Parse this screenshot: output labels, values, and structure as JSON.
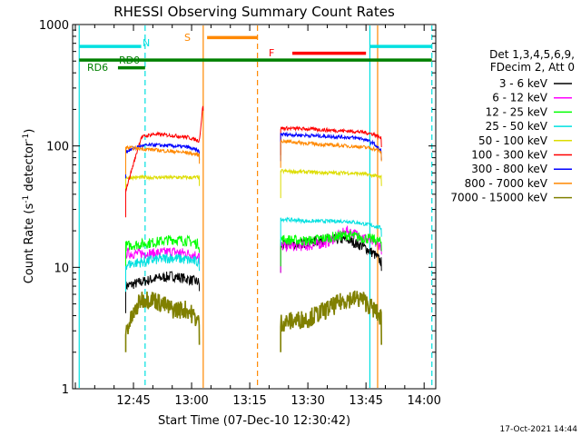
{
  "chart_data": {
    "type": "line",
    "title": "RHESSI Observing Summary Count Rates",
    "xlabel": "Start Time (07-Dec-10 12:30:42)",
    "ylabel_parts": [
      "Count Rate (s",
      "-1",
      " detector",
      "-1",
      ")"
    ],
    "y_scale": "log",
    "ylim": [
      1,
      1000
    ],
    "xlim_minutes_of_hour_13": [
      -30.7,
      63.0
    ],
    "x_ticks": [
      "12:45",
      "13:00",
      "13:15",
      "13:30",
      "13:45",
      "14:00"
    ],
    "y_ticks": [
      "1",
      "10",
      "100",
      "1000"
    ],
    "legend_header": [
      "Det 1,3,4,5,6,9,",
      "FDecim 2, Att 0"
    ],
    "timestamp": "17-Oct-2021 14:44",
    "grid": false,
    "series": [
      {
        "name": "3 - 6 keV",
        "color": "#000000",
        "segments": [
          {
            "x": [
              "12:43",
              "12:50",
              "12:55",
              "12:59",
              "13:02"
            ],
            "y": [
              7,
              8,
              8.5,
              8,
              7.5
            ]
          },
          {
            "x": [
              "13:23",
              "13:30",
              "13:35",
              "13:40",
              "13:44",
              "13:47",
              "13:49"
            ],
            "y": [
              15,
              16,
              17,
              17,
              15,
              13,
              11
            ]
          }
        ]
      },
      {
        "name": "6 - 12 keV",
        "color": "#ff00ff",
        "segments": [
          {
            "x": [
              "12:43",
              "12:50",
              "12:55",
              "12:59",
              "13:02"
            ],
            "y": [
              13,
              13,
              13.5,
              13,
              12.5
            ]
          },
          {
            "x": [
              "13:23",
              "13:30",
              "13:35",
              "13:40",
              "13:44",
              "13:47",
              "13:49"
            ],
            "y": [
              15,
              15,
              16,
              20,
              18,
              16,
              15
            ]
          }
        ]
      },
      {
        "name": "12 - 25 keV",
        "color": "#00ff00",
        "segments": [
          {
            "x": [
              "12:43",
              "12:50",
              "12:55",
              "12:59",
              "13:02"
            ],
            "y": [
              15,
              16,
              17,
              16.5,
              15.5
            ]
          },
          {
            "x": [
              "13:23",
              "13:30",
              "13:35",
              "13:40",
              "13:44",
              "13:47",
              "13:49"
            ],
            "y": [
              17,
              16.5,
              17.5,
              18.5,
              17.5,
              17,
              16
            ]
          }
        ]
      },
      {
        "name": "25 - 50 keV",
        "color": "#00e0e0",
        "segments": [
          {
            "x": [
              "12:43",
              "12:50",
              "12:55",
              "12:59",
              "13:02"
            ],
            "y": [
              10.5,
              11.5,
              12,
              11.5,
              11
            ]
          },
          {
            "x": [
              "13:23",
              "13:30",
              "13:35",
              "13:40",
              "13:44",
              "13:47",
              "13:49"
            ],
            "y": [
              25,
              24,
              24,
              24,
              23,
              22,
              21
            ]
          }
        ]
      },
      {
        "name": "50 - 100 keV",
        "color": "#dddd00",
        "segments": [
          {
            "x": [
              "12:43",
              "12:50",
              "12:55",
              "12:59",
              "13:02"
            ],
            "y": [
              55,
              55,
              55,
              55,
              55
            ]
          },
          {
            "x": [
              "13:23",
              "13:30",
              "13:35",
              "13:40",
              "13:44",
              "13:47",
              "13:49"
            ],
            "y": [
              62,
              61,
              60,
              60,
              59,
              57,
              55
            ]
          }
        ]
      },
      {
        "name": "100 - 300 keV",
        "color": "#ff0000",
        "segments": [
          {
            "x": [
              "12:43",
              "12:47",
              "12:50",
              "12:55",
              "12:59",
              "13:02",
              "13:03"
            ],
            "y": [
              43,
              118,
              125,
              122,
              118,
              110,
              230
            ]
          },
          {
            "x": [
              "13:23",
              "13:30",
              "13:35",
              "13:40",
              "13:44",
              "13:47",
              "13:49"
            ],
            "y": [
              140,
              138,
              135,
              133,
              130,
              125,
              115
            ]
          }
        ]
      },
      {
        "name": "300 - 800 keV",
        "color": "#0000ff",
        "segments": [
          {
            "x": [
              "12:43",
              "12:47",
              "12:50",
              "12:55",
              "12:59",
              "13:02"
            ],
            "y": [
              90,
              100,
              102,
              100,
              98,
              90
            ]
          },
          {
            "x": [
              "13:23",
              "13:30",
              "13:35",
              "13:40",
              "13:44",
              "13:47",
              "13:49"
            ],
            "y": [
              125,
              122,
              120,
              118,
              115,
              105,
              90
            ]
          }
        ]
      },
      {
        "name": "800 - 7000 keV",
        "color": "#ff8800",
        "segments": [
          {
            "x": [
              "12:43",
              "12:47",
              "12:50",
              "12:55",
              "12:59",
              "13:02"
            ],
            "y": [
              97,
              95,
              93,
              90,
              88,
              84
            ]
          },
          {
            "x": [
              "13:23",
              "13:30",
              "13:35",
              "13:40",
              "13:44",
              "13:47",
              "13:49"
            ],
            "y": [
              110,
              105,
              102,
              100,
              98,
              95,
              88
            ]
          }
        ]
      },
      {
        "name": "7000 - 15000 keV",
        "color": "#808000",
        "segments": [
          {
            "x": [
              "12:43",
              "12:47",
              "12:50",
              "12:55",
              "12:59",
              "13:02"
            ],
            "y": [
              3,
              5.5,
              5.5,
              4.5,
              4.5,
              3.5
            ]
          },
          {
            "x": [
              "13:23",
              "13:30",
              "13:35",
              "13:40",
              "13:44",
              "13:47",
              "13:49"
            ],
            "y": [
              3.5,
              3.8,
              4.5,
              5.5,
              5.5,
              4.5,
              3.8
            ]
          }
        ]
      }
    ],
    "vertical_lines": [
      {
        "time": "12:31",
        "color": "#00e0e0",
        "style": "solid"
      },
      {
        "time": "12:48",
        "color": "#00e0e0",
        "style": "dashed"
      },
      {
        "time": "13:03",
        "color": "#ff8800",
        "style": "solid"
      },
      {
        "time": "13:17",
        "color": "#ff8800",
        "style": "dashed"
      },
      {
        "time": "13:46",
        "color": "#00e0e0",
        "style": "solid"
      },
      {
        "time": "13:48",
        "color": "#ff8800",
        "style": "solid"
      },
      {
        "time": "14:02",
        "color": "#00e0e0",
        "style": "dashed"
      }
    ],
    "flag_bars": [
      {
        "label": "N",
        "color": "#00e0e0",
        "segments": [
          [
            "12:31",
            "12:47"
          ],
          [
            "13:46",
            "14:02"
          ]
        ],
        "level": 660
      },
      {
        "label": "S",
        "color": "#ff8800",
        "segments": [
          [
            "13:04",
            "13:17"
          ]
        ],
        "level": 780
      },
      {
        "label": "F",
        "color": "#ff0000",
        "segments": [
          [
            "13:26",
            "13:45"
          ]
        ],
        "level": 580
      },
      {
        "label": "RD0",
        "color": "#008000",
        "segments": [
          [
            "12:31",
            "14:02"
          ]
        ],
        "level": 510
      },
      {
        "label": "RD6",
        "color": "#008000",
        "segments": [
          [
            "12:41",
            "12:48"
          ]
        ],
        "level": 440
      }
    ]
  }
}
